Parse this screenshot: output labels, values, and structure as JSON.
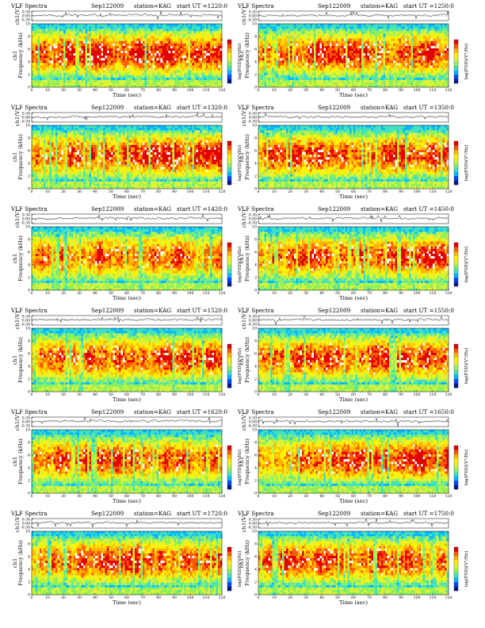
{
  "figure": {
    "panels": [
      {
        "title": "VLF Spectra",
        "date": "Sep122009",
        "station": "station=KAG",
        "start_label": "start  UT  =1220:0",
        "seed": 11
      },
      {
        "title": "VLF Spectra",
        "date": "Sep122009",
        "station": "station=KAG",
        "start_label": "start  UT  =1250:0",
        "seed": 23
      },
      {
        "title": "VLF Spectra",
        "date": "Sep122009",
        "station": "station=KAG",
        "start_label": "start  UT  =1320:0",
        "seed": 37
      },
      {
        "title": "VLF Spectra",
        "date": "Sep122009",
        "station": "station=KAG",
        "start_label": "start  UT  =1350:0",
        "seed": 41
      },
      {
        "title": "VLF Spectra",
        "date": "Sep122009",
        "station": "station=KAG",
        "start_label": "start  UT  =1420:0",
        "seed": 53
      },
      {
        "title": "VLF Spectra",
        "date": "Sep122009",
        "station": "station=KAG",
        "start_label": "start  UT  =1450:0",
        "seed": 67
      },
      {
        "title": "VLF Spectra",
        "date": "Sep122009",
        "station": "station=KAG",
        "start_label": "start  UT  =1520:0",
        "seed": 71
      },
      {
        "title": "VLF Spectra",
        "date": "Sep122009",
        "station": "station=KAG",
        "start_label": "start  UT  =1550:0",
        "seed": 83
      },
      {
        "title": "VLF Spectra",
        "date": "Sep122009",
        "station": "station=KAG",
        "start_label": "start  UT  =1620:0",
        "seed": 97
      },
      {
        "title": "VLF Spectra",
        "date": "Sep122009",
        "station": "station=KAG",
        "start_label": "start  UT  =1650:0",
        "seed": 101
      },
      {
        "title": "VLF Spectra",
        "date": "Sep122009",
        "station": "station=KAG",
        "start_label": "start  UT  =1720:0",
        "seed": 113
      },
      {
        "title": "VLF Spectra",
        "date": "Sep122009",
        "station": "station=KAG",
        "start_label": "start  UT  =1750:0",
        "seed": 127
      }
    ]
  },
  "chart_data": {
    "type": "heatmap",
    "waveform": {
      "ylabel": "ch1(V)",
      "ytick_labels": [
        "0.30",
        "0.00",
        "-0.30"
      ],
      "yticks": [
        0.3,
        0.0,
        -0.3
      ],
      "ylim": [
        -0.35,
        0.35
      ]
    },
    "spectrogram": {
      "xlabel": "Time  (sec)",
      "ylabel_line1": "ch1",
      "ylabel_line2": "Frequency  (kHz)",
      "xticks": [
        0,
        10,
        20,
        30,
        40,
        50,
        60,
        70,
        80,
        90,
        100,
        110,
        120
      ],
      "xlim": [
        0,
        120
      ],
      "yticks": [
        0,
        2,
        4,
        6,
        8,
        10
      ],
      "ylim": [
        0,
        10
      ],
      "colorbar_label": "log(PSD)(V²/Hz)",
      "colorbar_min": "-",
      "colorbar_max": "-",
      "colormap": [
        "#001b8c",
        "#0047ff",
        "#00b7ff",
        "#3fe0c0",
        "#8ef05a",
        "#d9f23c",
        "#fff200",
        "#ffb400",
        "#ff5a00",
        "#e00000"
      ]
    }
  }
}
